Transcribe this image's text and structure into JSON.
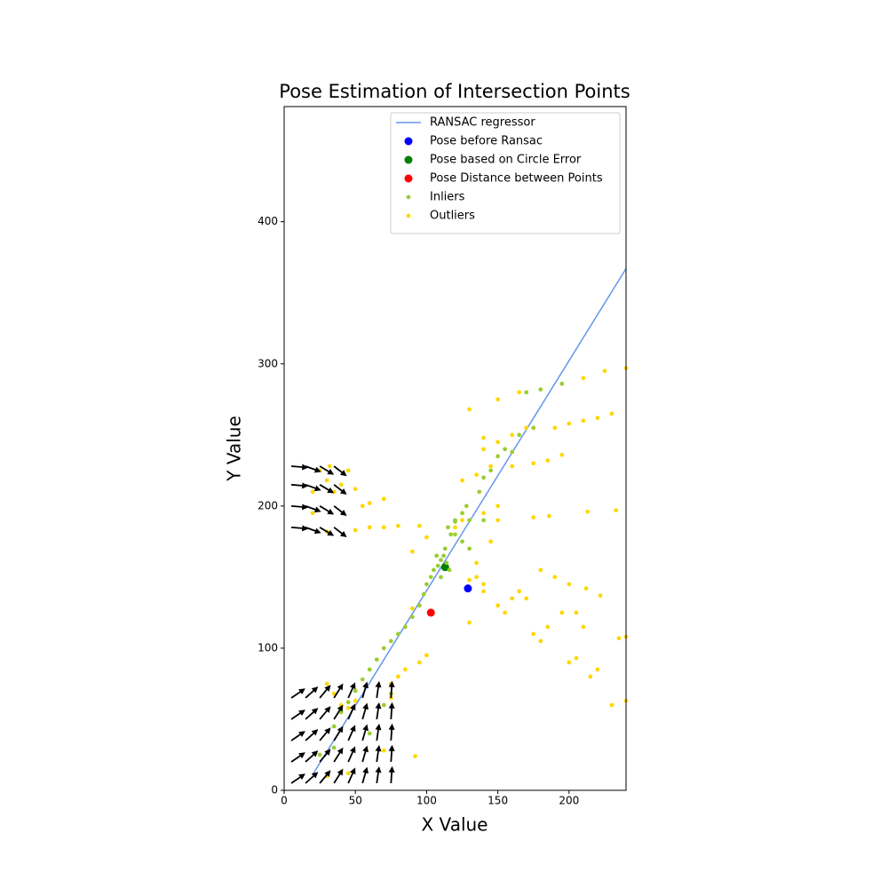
{
  "chart_data": {
    "type": "scatter",
    "title": "Pose Estimation of Intersection Points",
    "x_label": "X Value",
    "y_label": "Y Value",
    "xlim": [
      0,
      240
    ],
    "ylim": [
      0,
      481
    ],
    "xticks": [
      0,
      50,
      100,
      150,
      200
    ],
    "yticks": [
      0,
      100,
      200,
      300,
      400
    ],
    "legend": "upper right",
    "series": [
      {
        "name": "RANSAC regressor",
        "type": "line",
        "color": "#6495ed",
        "x": [
          20,
          240
        ],
        "values": [
          11,
          367
        ]
      },
      {
        "name": "Pose before Ransac",
        "type": "scatter",
        "color": "#0000ff",
        "marker_size": 36,
        "x": [
          129
        ],
        "values": [
          142
        ]
      },
      {
        "name": "Pose based on Circle Error",
        "type": "scatter",
        "color": "#008000",
        "marker_size": 36,
        "x": [
          113
        ],
        "values": [
          157
        ]
      },
      {
        "name": "Pose Distance between Points",
        "type": "scatter",
        "color": "#ff0000",
        "marker_size": 36,
        "x": [
          103
        ],
        "values": [
          125
        ]
      },
      {
        "name": "Inliers",
        "type": "scatter",
        "color": "#9acd32",
        "marker_size": 10,
        "x": [
          35,
          40,
          45,
          50,
          55,
          60,
          65,
          70,
          75,
          80,
          85,
          90,
          95,
          98,
          100,
          103,
          105,
          108,
          110,
          112,
          114,
          116,
          110,
          107,
          113,
          117,
          120,
          125,
          128,
          115,
          120,
          125,
          130,
          120,
          130,
          140,
          137,
          140,
          145,
          150,
          155,
          165,
          170,
          180,
          195,
          175,
          160,
          70,
          75,
          60,
          35,
          25
        ],
        "values": [
          45,
          55,
          62,
          70,
          78,
          85,
          92,
          100,
          105,
          110,
          115,
          122,
          130,
          138,
          145,
          150,
          155,
          158,
          162,
          165,
          160,
          155,
          150,
          165,
          170,
          180,
          190,
          195,
          200,
          185,
          180,
          175,
          170,
          189,
          190,
          190,
          210,
          220,
          225,
          235,
          240,
          250,
          280,
          282,
          286,
          255,
          238,
          60,
          68,
          40,
          30,
          25
        ]
      },
      {
        "name": "Outliers",
        "type": "scatter",
        "color": "#ffd700",
        "marker_size": 10,
        "x": [
          20,
          25,
          30,
          35,
          40,
          50,
          55,
          60,
          70,
          20,
          30,
          50,
          60,
          70,
          80,
          95,
          90,
          100,
          120,
          125,
          140,
          150,
          150,
          145,
          135,
          135,
          130,
          140,
          150,
          155,
          160,
          165,
          170,
          175,
          180,
          185,
          195,
          205,
          210,
          200,
          205,
          215,
          220,
          230,
          240,
          235,
          240,
          180,
          190,
          200,
          212,
          222,
          140,
          150,
          160,
          170,
          190,
          200,
          210,
          220,
          230,
          130,
          150,
          165,
          210,
          225,
          240,
          125,
          135,
          145,
          160,
          175,
          185,
          195,
          140,
          100,
          95,
          85,
          80,
          75,
          30,
          35,
          40,
          45,
          50,
          30,
          45,
          70,
          75,
          92,
          130,
          140,
          213,
          233,
          175,
          186,
          90,
          45,
          32
        ],
        "values": [
          210,
          225,
          218,
          210,
          215,
          212,
          200,
          202,
          205,
          195,
          182,
          183,
          185,
          185,
          186,
          186,
          168,
          178,
          185,
          190,
          195,
          200,
          190,
          175,
          160,
          150,
          148,
          145,
          130,
          125,
          135,
          140,
          135,
          110,
          105,
          115,
          125,
          125,
          115,
          90,
          93,
          80,
          85,
          60,
          63,
          107,
          108,
          155,
          150,
          145,
          142,
          137,
          240,
          245,
          250,
          255,
          255,
          258,
          260,
          262,
          265,
          268,
          275,
          280,
          290,
          295,
          297,
          218,
          222,
          228,
          228,
          230,
          232,
          236,
          248,
          95,
          90,
          85,
          80,
          75,
          75,
          68,
          60,
          58,
          63,
          10,
          12,
          28,
          65,
          24,
          118,
          140,
          196,
          197,
          192,
          193,
          128,
          225,
          228
        ]
      },
      {
        "type": "quiver",
        "color": "#000000",
        "x": [
          5,
          15,
          25,
          35,
          45,
          55,
          65,
          75,
          5,
          15,
          25,
          35,
          45,
          55,
          65,
          75,
          5,
          15,
          25,
          35,
          45,
          55,
          65,
          75,
          5,
          15,
          25,
          35,
          45,
          55,
          65,
          75,
          5,
          15,
          25,
          35,
          45,
          55,
          65,
          75,
          5,
          15,
          25,
          35,
          5,
          15,
          25,
          35,
          5,
          15,
          25,
          35,
          5,
          15,
          25,
          35
        ],
        "y": [
          5,
          5,
          5,
          5,
          5,
          5,
          5,
          5,
          20,
          20,
          20,
          20,
          20,
          20,
          20,
          20,
          35,
          35,
          35,
          35,
          35,
          35,
          35,
          35,
          50,
          50,
          50,
          50,
          50,
          50,
          50,
          50,
          65,
          65,
          65,
          65,
          65,
          65,
          65,
          65,
          185,
          185,
          185,
          185,
          200,
          200,
          200,
          200,
          215,
          215,
          215,
          215,
          228,
          228,
          228,
          228
        ],
        "u": [
          9.9,
          8.9,
          7.7,
          6.4,
          4.9,
          3.3,
          1.7,
          0.8,
          9.9,
          8.9,
          7.7,
          6.4,
          4.9,
          3.3,
          1.7,
          0.8,
          9.9,
          8.9,
          7.7,
          6.4,
          4.9,
          3.3,
          1.7,
          0.8,
          9.9,
          8.9,
          7.7,
          6.4,
          4.9,
          3.3,
          1.7,
          0.8,
          9.9,
          8.9,
          7.7,
          6.4,
          4.9,
          3.3,
          1.7,
          0.8,
          12,
          11,
          10,
          9,
          12,
          11,
          10,
          9,
          12,
          11,
          10,
          9,
          12,
          11,
          10,
          9
        ],
        "v": [
          6.7,
          8,
          9.2,
          10.2,
          11,
          11.5,
          11.9,
          12,
          6.7,
          8,
          9.2,
          10.2,
          11,
          11.5,
          11.9,
          12,
          6.7,
          8,
          9.2,
          10.2,
          11,
          11.5,
          11.9,
          12,
          6.7,
          8,
          9.2,
          10.2,
          11,
          11.5,
          11.9,
          12,
          6.7,
          8,
          9.2,
          10.2,
          11,
          11.5,
          11.9,
          12,
          -1,
          -4,
          -6,
          -7,
          -1,
          -4,
          -6,
          -7,
          -1,
          -4,
          -6,
          -7,
          -1,
          -4,
          -6,
          -7
        ]
      }
    ]
  }
}
